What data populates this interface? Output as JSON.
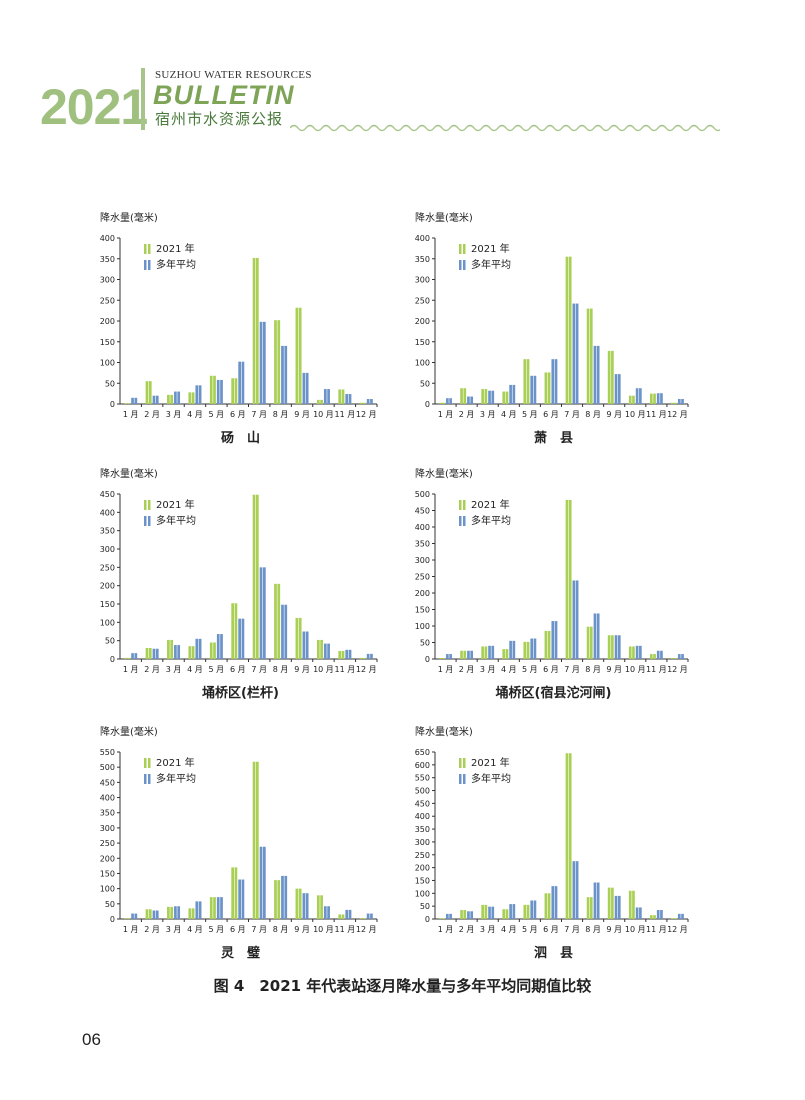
{
  "header": {
    "year": "2021",
    "title_en_small": "SUZHOU WATER RESOURCES",
    "title_en_big": "BULLETIN",
    "title_cn": "宿州市水资源公报"
  },
  "caption": "图 4　2021 年代表站逐月降水量与多年平均同期值比较",
  "page_number": "06",
  "colors": {
    "year2021": "#a9cf54",
    "average": "#6b93c9",
    "axis": "#333333"
  },
  "chart_data": [
    {
      "type": "bar",
      "station": "砀　山",
      "ylabel": "降水量(毫米)",
      "ylim": [
        0,
        400
      ],
      "yticks": [
        0,
        50,
        100,
        150,
        200,
        250,
        300,
        350,
        400
      ],
      "categories": [
        "1 月",
        "2 月",
        "3 月",
        "4 月",
        "5 月",
        "6 月",
        "7 月",
        "8 月",
        "9 月",
        "10 月",
        "11 月",
        "12 月"
      ],
      "series": [
        {
          "name": "2021 年",
          "values": [
            2,
            55,
            22,
            28,
            68,
            62,
            352,
            202,
            232,
            10,
            35,
            3
          ]
        },
        {
          "name": "多年平均",
          "values": [
            15,
            20,
            30,
            45,
            58,
            102,
            198,
            140,
            75,
            36,
            24,
            12
          ]
        }
      ]
    },
    {
      "type": "bar",
      "station": "萧　县",
      "ylabel": "降水量(毫米)",
      "ylim": [
        0,
        400
      ],
      "yticks": [
        0,
        50,
        100,
        150,
        200,
        250,
        300,
        350,
        400
      ],
      "categories": [
        "1 月",
        "2 月",
        "3 月",
        "4 月",
        "5 月",
        "6 月",
        "7 月",
        "8 月",
        "9 月",
        "10 月",
        "11 月",
        "12 月"
      ],
      "series": [
        {
          "name": "2021 年",
          "values": [
            3,
            38,
            36,
            30,
            108,
            76,
            355,
            230,
            128,
            20,
            25,
            3
          ]
        },
        {
          "name": "多年平均",
          "values": [
            14,
            18,
            32,
            46,
            68,
            108,
            242,
            140,
            72,
            38,
            26,
            12
          ]
        }
      ]
    },
    {
      "type": "bar",
      "station": "埇桥区(栏杆)",
      "ylabel": "降水量(毫米)",
      "ylim": [
        0,
        450
      ],
      "yticks": [
        0,
        50,
        100,
        150,
        200,
        250,
        300,
        350,
        400,
        450
      ],
      "categories": [
        "1 月",
        "2 月",
        "3 月",
        "4 月",
        "5 月",
        "6 月",
        "7 月",
        "8 月",
        "9 月",
        "10 月",
        "11 月",
        "12 月"
      ],
      "series": [
        {
          "name": "2021 年",
          "values": [
            3,
            30,
            52,
            35,
            45,
            152,
            448,
            205,
            112,
            52,
            22,
            3
          ]
        },
        {
          "name": "多年平均",
          "values": [
            16,
            28,
            38,
            55,
            68,
            110,
            250,
            148,
            75,
            42,
            25,
            14
          ]
        }
      ]
    },
    {
      "type": "bar",
      "station": "埇桥区(宿县沱河闸)",
      "ylabel": "降水量(毫米)",
      "ylim": [
        0,
        500
      ],
      "yticks": [
        0,
        50,
        100,
        150,
        200,
        250,
        300,
        350,
        400,
        450,
        500
      ],
      "categories": [
        "1 月",
        "2 月",
        "3 月",
        "4 月",
        "5 月",
        "6 月",
        "7 月",
        "8 月",
        "9 月",
        "10 月",
        "11 月",
        "12 月"
      ],
      "series": [
        {
          "name": "2021 年",
          "values": [
            3,
            25,
            38,
            30,
            52,
            85,
            482,
            98,
            72,
            38,
            15,
            3
          ]
        },
        {
          "name": "多年平均",
          "values": [
            15,
            25,
            40,
            55,
            62,
            115,
            238,
            138,
            72,
            40,
            25,
            15
          ]
        }
      ]
    },
    {
      "type": "bar",
      "station": "灵　璧",
      "ylabel": "降水量(毫米)",
      "ylim": [
        0,
        550
      ],
      "yticks": [
        0,
        50,
        100,
        150,
        200,
        250,
        300,
        350,
        400,
        450,
        500,
        550
      ],
      "categories": [
        "1 月",
        "2 月",
        "3 月",
        "4 月",
        "5 月",
        "6 月",
        "7 月",
        "8 月",
        "9 月",
        "10 月",
        "11 月",
        "12 月"
      ],
      "series": [
        {
          "name": "2021 年",
          "values": [
            3,
            32,
            40,
            35,
            72,
            170,
            518,
            128,
            100,
            78,
            15,
            3
          ]
        },
        {
          "name": "多年平均",
          "values": [
            18,
            28,
            42,
            58,
            72,
            130,
            238,
            142,
            85,
            42,
            30,
            18
          ]
        }
      ]
    },
    {
      "type": "bar",
      "station": "泗　县",
      "ylabel": "降水量(毫米)",
      "ylim": [
        0,
        650
      ],
      "yticks": [
        0,
        50,
        100,
        150,
        200,
        250,
        300,
        350,
        400,
        450,
        500,
        550,
        600,
        650
      ],
      "categories": [
        "1 月",
        "2 月",
        "3 月",
        "4 月",
        "5 月",
        "6 月",
        "7 月",
        "8 月",
        "9 月",
        "10 月",
        "11 月",
        "12 月"
      ],
      "series": [
        {
          "name": "2021 年",
          "values": [
            3,
            35,
            55,
            38,
            55,
            100,
            645,
            85,
            122,
            110,
            15,
            3
          ]
        },
        {
          "name": "多年平均",
          "values": [
            20,
            30,
            48,
            58,
            72,
            128,
            225,
            142,
            90,
            45,
            35,
            20
          ]
        }
      ]
    }
  ]
}
